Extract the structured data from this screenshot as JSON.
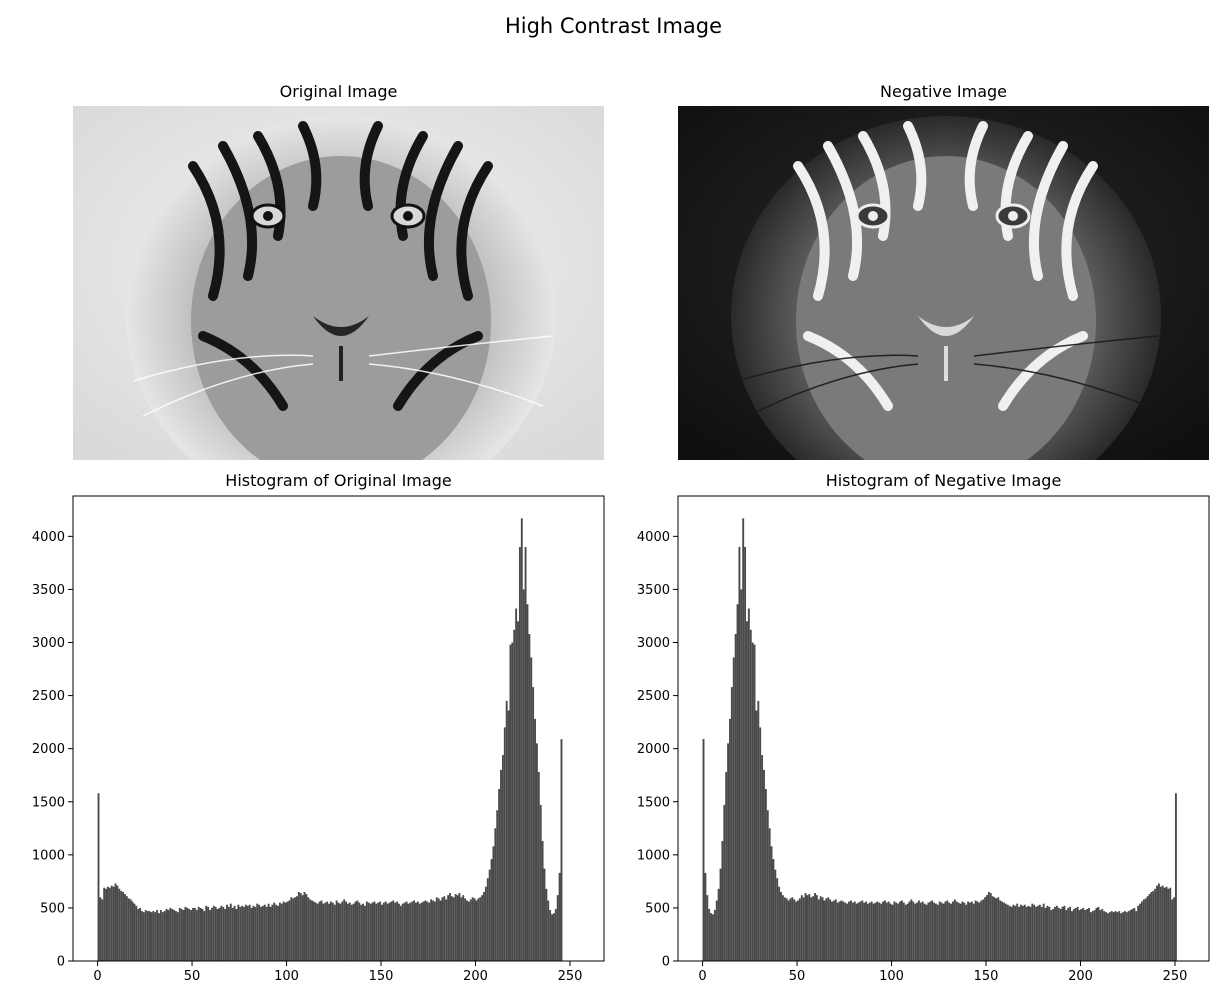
{
  "figure": {
    "suptitle": "High Contrast Image"
  },
  "panels": {
    "original_image": {
      "title": "Original Image"
    },
    "negative_image": {
      "title": "Negative Image"
    }
  },
  "colors": {
    "bar": "#4a4a4a",
    "axis": "#000000",
    "background": "#ffffff"
  },
  "chart_data": [
    {
      "type": "bar",
      "title": "Histogram of Original Image",
      "xlabel": "",
      "ylabel": "",
      "xlim": [
        -13,
        268
      ],
      "ylim": [
        0,
        4380
      ],
      "xticks": [
        0,
        50,
        100,
        150,
        200,
        250
      ],
      "yticks": [
        0,
        500,
        1000,
        1500,
        2000,
        2500,
        3000,
        3500,
        4000
      ],
      "grid": false,
      "bins_start": 0,
      "bin_width": 1,
      "values": [
        1580,
        600,
        580,
        690,
        680,
        700,
        690,
        710,
        700,
        730,
        710,
        680,
        660,
        650,
        630,
        610,
        590,
        580,
        560,
        540,
        520,
        490,
        500,
        470,
        460,
        480,
        470,
        470,
        460,
        470,
        460,
        480,
        450,
        480,
        460,
        470,
        490,
        480,
        500,
        490,
        480,
        470,
        460,
        500,
        490,
        480,
        510,
        500,
        490,
        480,
        500,
        500,
        480,
        510,
        500,
        490,
        470,
        520,
        510,
        480,
        500,
        520,
        510,
        490,
        500,
        520,
        510,
        490,
        530,
        510,
        540,
        500,
        520,
        490,
        530,
        510,
        520,
        510,
        530,
        520,
        530,
        500,
        520,
        510,
        540,
        530,
        510,
        520,
        530,
        510,
        540,
        510,
        530,
        550,
        530,
        520,
        550,
        540,
        560,
        550,
        560,
        570,
        600,
        590,
        600,
        610,
        650,
        640,
        620,
        650,
        630,
        600,
        580,
        570,
        560,
        550,
        540,
        560,
        570,
        540,
        550,
        560,
        540,
        560,
        550,
        530,
        570,
        550,
        540,
        560,
        580,
        560,
        540,
        550,
        530,
        540,
        560,
        570,
        550,
        530,
        540,
        520,
        560,
        550,
        540,
        550,
        560,
        540,
        550,
        560,
        530,
        550,
        560,
        540,
        550,
        560,
        570,
        550,
        560,
        540,
        520,
        540,
        550,
        560,
        540,
        550,
        560,
        570,
        550,
        560,
        540,
        550,
        560,
        570,
        560,
        550,
        580,
        570,
        560,
        600,
        590,
        570,
        600,
        610,
        580,
        620,
        640,
        610,
        600,
        630,
        620,
        640,
        600,
        620,
        590,
        570,
        560,
        580,
        600,
        590,
        570,
        590,
        600,
        620,
        650,
        700,
        780,
        860,
        960,
        1080,
        1250,
        1420,
        1620,
        1800,
        1940,
        2200,
        2450,
        2360,
        2980,
        3000,
        3120,
        3320,
        3200,
        3900,
        4170,
        3500,
        3900,
        3360,
        3080,
        2860,
        2580,
        2280,
        2050,
        1780,
        1470,
        1130,
        870,
        680,
        570,
        480,
        440,
        450,
        490,
        620,
        830,
        2090
      ]
    },
    {
      "type": "bar",
      "title": "Histogram of Negative Image",
      "xlabel": "",
      "ylabel": "",
      "xlim": [
        -13,
        268
      ],
      "ylim": [
        0,
        4380
      ],
      "xticks": [
        0,
        50,
        100,
        150,
        200,
        250
      ],
      "yticks": [
        0,
        500,
        1000,
        1500,
        2000,
        2500,
        3000,
        3500,
        4000
      ],
      "grid": false,
      "bins_start": 0,
      "bin_width": 1,
      "values": [
        2090,
        830,
        620,
        490,
        450,
        440,
        480,
        570,
        680,
        870,
        1130,
        1470,
        1780,
        2050,
        2280,
        2580,
        2860,
        3080,
        3360,
        3900,
        3500,
        4170,
        3900,
        3200,
        3320,
        3120,
        3000,
        2980,
        2360,
        2450,
        2200,
        1940,
        1800,
        1620,
        1420,
        1250,
        1080,
        960,
        860,
        780,
        700,
        650,
        620,
        600,
        590,
        570,
        590,
        600,
        580,
        560,
        570,
        590,
        620,
        600,
        640,
        620,
        630,
        600,
        610,
        640,
        620,
        580,
        610,
        600,
        570,
        590,
        600,
        580,
        560,
        570,
        580,
        550,
        560,
        570,
        560,
        550,
        540,
        560,
        570,
        550,
        560,
        540,
        550,
        560,
        570,
        550,
        560,
        540,
        550,
        560,
        540,
        550,
        560,
        550,
        540,
        560,
        570,
        550,
        560,
        540,
        530,
        560,
        550,
        540,
        560,
        570,
        550,
        530,
        540,
        560,
        580,
        560,
        540,
        550,
        570,
        550,
        560,
        540,
        530,
        550,
        560,
        570,
        550,
        540,
        530,
        560,
        550,
        540,
        560,
        570,
        550,
        540,
        560,
        580,
        560,
        550,
        540,
        560,
        550,
        530,
        560,
        550,
        560,
        540,
        570,
        560,
        550,
        570,
        580,
        600,
        620,
        650,
        640,
        610,
        600,
        590,
        600,
        570,
        560,
        550,
        540,
        530,
        520,
        510,
        530,
        520,
        540,
        510,
        530,
        520,
        530,
        510,
        520,
        510,
        540,
        530,
        510,
        520,
        530,
        510,
        540,
        500,
        520,
        510,
        480,
        490,
        510,
        520,
        500,
        490,
        510,
        520,
        480,
        500,
        510,
        470,
        490,
        500,
        510,
        480,
        490,
        500,
        480,
        490,
        500,
        460,
        470,
        480,
        500,
        510,
        480,
        490,
        470,
        460,
        450,
        460,
        470,
        460,
        470,
        460,
        470,
        450,
        460,
        470,
        460,
        470,
        480,
        490,
        500,
        470,
        520,
        540,
        560,
        580,
        590,
        610,
        630,
        650,
        660,
        680,
        710,
        730,
        700,
        710,
        690,
        700,
        680,
        690,
        580,
        600,
        1580
      ]
    }
  ]
}
